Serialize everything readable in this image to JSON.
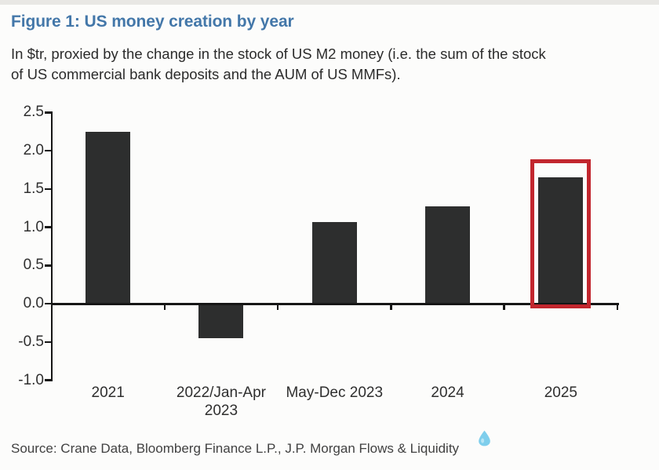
{
  "page": {
    "title": "Figure 1: US money creation by year",
    "subtitle": "In $tr, proxied by the change in the stock of US M2 money (i.e. the sum of the stock of US commercial bank deposits and the AUM of US MMFs).",
    "subtitle_lines": [
      "In $tr, proxied by the change in the stock of US M2 money (i.e. the sum of the stock",
      "of US commercial bank deposits and the AUM of US MMFs)."
    ],
    "source": "Source: Crane Data, Bloomberg Finance L.P., J.P. Morgan Flows & Liquidity"
  },
  "colors": {
    "title_blue": "#4377a9",
    "bar": "#2d2e2e",
    "axis": "#161616",
    "text": "#2f2f2f",
    "highlight_red": "#c2262e",
    "droplet_blue": "#5fc3e9",
    "background": "#fcfcfb"
  },
  "chart_data": {
    "type": "bar",
    "title": "Figure 1: US money creation by year",
    "categories": [
      "2021",
      "2022/Jan-Apr 2023",
      "May-Dec 2023",
      "2024",
      "2025"
    ],
    "values": [
      2.25,
      -0.45,
      1.07,
      1.27,
      1.65
    ],
    "xlabel": "",
    "ylabel": "",
    "ylim": [
      -1.0,
      2.5
    ],
    "ytick_step": 0.5,
    "ytick_labels": [
      "2.5",
      "2.0",
      "1.5",
      "1.0",
      "0.5",
      "0.0",
      "-0.5",
      "-1.0"
    ],
    "grid": false,
    "legend": false,
    "highlighted_category": "2025",
    "highlight_style": "red-outline-box"
  }
}
